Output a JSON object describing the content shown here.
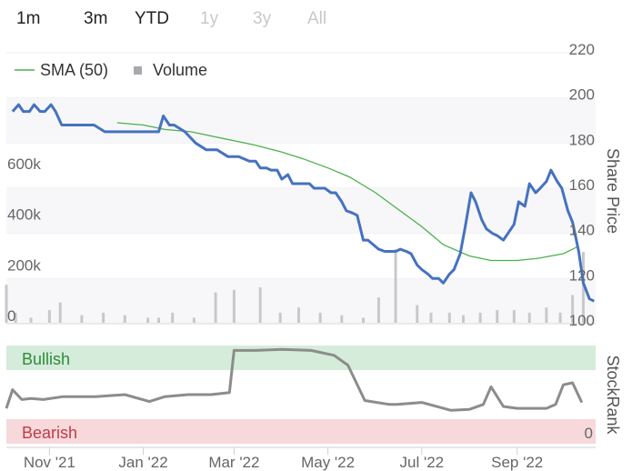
{
  "range_selector": {
    "buttons": [
      {
        "label": "1m",
        "enabled": true
      },
      {
        "label": "3m",
        "enabled": true
      },
      {
        "label": "YTD",
        "enabled": true
      },
      {
        "label": "1y",
        "enabled": false
      },
      {
        "label": "3y",
        "enabled": false
      },
      {
        "label": "All",
        "enabled": false
      }
    ]
  },
  "legend": {
    "sma_label": "SMA (50)",
    "volume_label": "Volume"
  },
  "colors": {
    "price": "#4572c0",
    "sma": "#4cb04c",
    "volume": "#c8c8cc",
    "stockrank": "#8c8c8c",
    "bullish_band": "#d4ecd9",
    "bearish_band": "#f7d9db",
    "bullish_text": "#2f8a3c",
    "bearish_text": "#c4394a"
  },
  "chart_data": [
    {
      "type": "line",
      "ylabel": "Share Price",
      "ylim": [
        100,
        220
      ],
      "y_ticks": [
        "220",
        "200",
        "180",
        "160",
        "140",
        "120",
        "100"
      ],
      "x_tick_labels": [
        "Nov '21",
        "Jan '22",
        "Mar '22",
        "May '22",
        "Jul '22",
        "Sep '22"
      ],
      "series": [
        {
          "name": "",
          "role": "price",
          "x": [
            "2021-10-08",
            "2021-10-12",
            "2021-10-15",
            "2021-10-19",
            "2021-10-22",
            "2021-10-26",
            "2021-10-29",
            "2021-11-02",
            "2021-11-05",
            "2021-11-09",
            "2021-11-16",
            "2021-11-23",
            "2021-11-30",
            "2021-12-07",
            "2021-12-14",
            "2021-12-21",
            "2021-12-28",
            "2022-01-04",
            "2022-01-11",
            "2022-01-14",
            "2022-01-18",
            "2022-01-21",
            "2022-01-28",
            "2022-02-04",
            "2022-02-11",
            "2022-02-18",
            "2022-02-25",
            "2022-03-04",
            "2022-03-11",
            "2022-03-15",
            "2022-03-18",
            "2022-03-22",
            "2022-03-25",
            "2022-03-29",
            "2022-04-01",
            "2022-04-05",
            "2022-04-08",
            "2022-04-12",
            "2022-04-19",
            "2022-04-22",
            "2022-04-29",
            "2022-05-03",
            "2022-05-06",
            "2022-05-10",
            "2022-05-13",
            "2022-05-17",
            "2022-05-20",
            "2022-05-24",
            "2022-05-27",
            "2022-06-03",
            "2022-06-07",
            "2022-06-10",
            "2022-06-14",
            "2022-06-17",
            "2022-06-21",
            "2022-06-24",
            "2022-06-28",
            "2022-07-01",
            "2022-07-05",
            "2022-07-08",
            "2022-07-12",
            "2022-07-15",
            "2022-07-19",
            "2022-07-22",
            "2022-07-26",
            "2022-07-29",
            "2022-08-02",
            "2022-08-05",
            "2022-08-09",
            "2022-08-12",
            "2022-08-16",
            "2022-08-19",
            "2022-08-23",
            "2022-08-26",
            "2022-08-30",
            "2022-09-02",
            "2022-09-06",
            "2022-09-09",
            "2022-09-13",
            "2022-09-16",
            "2022-09-20",
            "2022-09-23",
            "2022-09-27",
            "2022-09-30",
            "2022-10-04",
            "2022-10-07",
            "2022-10-11",
            "2022-10-14",
            "2022-10-18",
            "2022-10-21"
          ],
          "values": [
            194,
            197,
            194,
            194,
            197,
            194,
            194,
            197,
            194,
            188,
            188,
            188,
            188,
            185,
            185,
            185,
            185,
            185,
            185,
            192,
            188,
            188,
            185,
            180,
            177,
            177,
            174,
            174,
            172,
            172,
            169,
            169,
            168,
            168,
            164,
            166,
            162,
            162,
            162,
            160,
            160,
            158,
            158,
            154,
            150,
            149,
            148,
            137,
            137,
            133,
            132,
            132,
            132,
            133,
            132,
            131,
            126,
            124,
            122,
            120,
            120,
            118,
            122,
            124,
            131,
            142,
            158,
            154,
            146,
            142,
            140,
            139,
            137,
            140,
            144,
            154,
            152,
            162,
            158,
            160,
            163,
            168,
            163,
            160,
            150,
            145,
            132,
            118,
            111,
            110
          ]
        },
        {
          "name": "SMA (50)",
          "role": "sma",
          "x": [
            "2021-12-15",
            "2022-01-01",
            "2022-01-15",
            "2022-02-01",
            "2022-02-15",
            "2022-03-01",
            "2022-03-15",
            "2022-04-01",
            "2022-04-15",
            "2022-05-01",
            "2022-05-15",
            "2022-06-01",
            "2022-06-15",
            "2022-07-01",
            "2022-07-15",
            "2022-08-01",
            "2022-08-15",
            "2022-09-01",
            "2022-09-15",
            "2022-10-01",
            "2022-10-10"
          ],
          "values": [
            189,
            188,
            186,
            185,
            183,
            181,
            179,
            176,
            173,
            169,
            165,
            158,
            151,
            143,
            135,
            130,
            128,
            128,
            129,
            131,
            134
          ]
        }
      ]
    },
    {
      "type": "bar",
      "series_name": "Volume",
      "y_ticks": [
        "600k",
        "400k",
        "200k",
        "0"
      ],
      "ylim": [
        0,
        700000
      ],
      "x": [
        "2021-10-04",
        "2021-10-10",
        "2021-10-20",
        "2021-11-01",
        "2021-11-08",
        "2021-11-22",
        "2021-12-06",
        "2021-12-20",
        "2022-01-04",
        "2022-01-11",
        "2022-01-20",
        "2022-02-03",
        "2022-02-17",
        "2022-03-01",
        "2022-03-18",
        "2022-03-31",
        "2022-04-12",
        "2022-04-26",
        "2022-05-10",
        "2022-05-24",
        "2022-06-03",
        "2022-06-14",
        "2022-06-28",
        "2022-07-07",
        "2022-07-19",
        "2022-07-28",
        "2022-08-08",
        "2022-08-19",
        "2022-08-30",
        "2022-09-09",
        "2022-09-20",
        "2022-09-29",
        "2022-10-07",
        "2022-10-14"
      ],
      "values": [
        150000,
        40000,
        20000,
        50000,
        80000,
        30000,
        40000,
        30000,
        20000,
        20000,
        40000,
        20000,
        120000,
        130000,
        140000,
        40000,
        60000,
        40000,
        30000,
        20000,
        100000,
        290000,
        70000,
        40000,
        40000,
        30000,
        40000,
        50000,
        50000,
        40000,
        60000,
        40000,
        110000,
        280000
      ]
    },
    {
      "type": "line",
      "series_name": "StockRank",
      "bands": [
        "Bullish",
        "Bearish"
      ],
      "ylim": [
        0,
        100
      ],
      "y_ticks": [
        "0"
      ],
      "ylabel": "StockRank",
      "x": [
        "2021-10-04",
        "2021-10-08",
        "2021-10-14",
        "2021-10-20",
        "2021-10-28",
        "2021-11-10",
        "2021-12-01",
        "2021-12-20",
        "2022-01-05",
        "2022-01-15",
        "2022-01-30",
        "2022-02-14",
        "2022-02-26",
        "2022-03-01",
        "2022-03-15",
        "2022-04-01",
        "2022-04-20",
        "2022-05-05",
        "2022-05-14",
        "2022-05-25",
        "2022-06-10",
        "2022-06-15",
        "2022-07-01",
        "2022-07-20",
        "2022-08-01",
        "2022-08-10",
        "2022-08-15",
        "2022-08-23",
        "2022-09-01",
        "2022-09-20",
        "2022-09-26",
        "2022-10-01",
        "2022-10-07",
        "2022-10-13"
      ],
      "values": [
        36,
        55,
        45,
        46,
        45,
        48,
        48,
        50,
        43,
        48,
        50,
        50,
        52,
        95,
        95,
        96,
        95,
        90,
        80,
        44,
        40,
        40,
        42,
        34,
        35,
        40,
        58,
        38,
        36,
        36,
        40,
        60,
        62,
        42
      ]
    }
  ]
}
